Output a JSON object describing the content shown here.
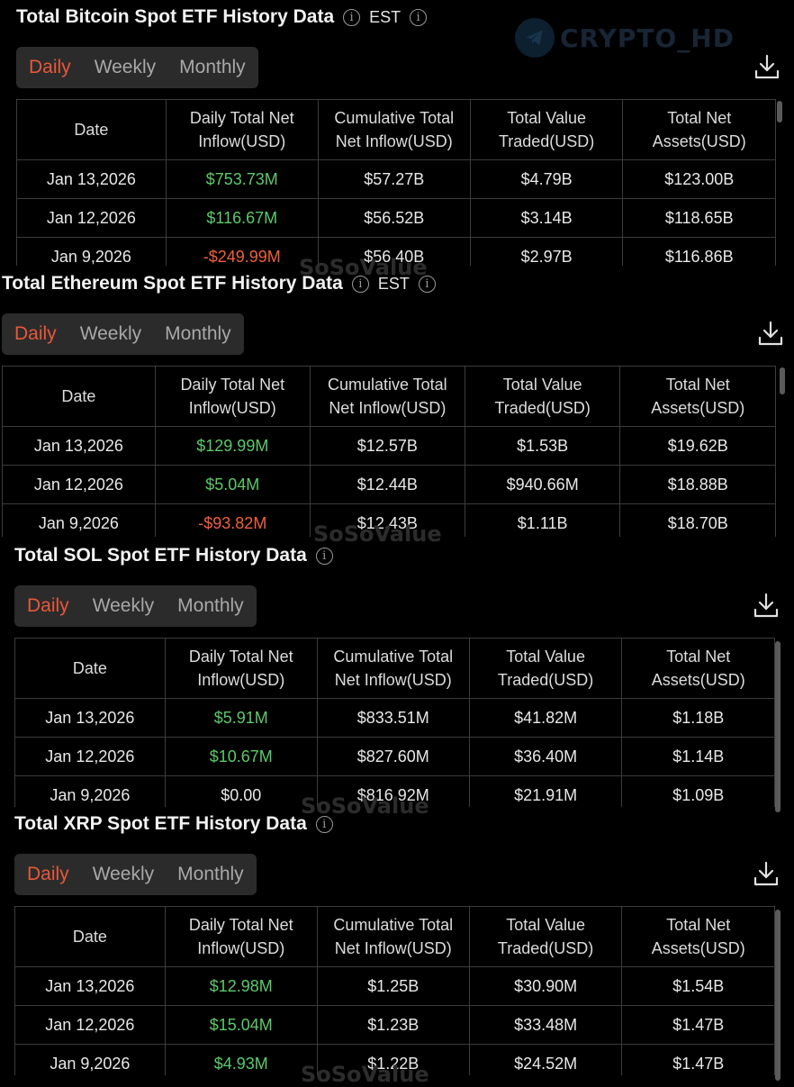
{
  "watermark": "CRYPTO_HD",
  "bg_watermark": "SoSoValue",
  "tabs": [
    "Daily",
    "Weekly",
    "Monthly"
  ],
  "headers": [
    [
      "Date",
      ""
    ],
    [
      "Daily Total Net",
      "Inflow(USD)"
    ],
    [
      "Cumulative Total",
      "Net Inflow(USD)"
    ],
    [
      "Total Value",
      "Traded(USD)"
    ],
    [
      "Total Net",
      "Assets(USD)"
    ]
  ],
  "sections": [
    {
      "title": "Total Bitcoin Spot ETF History Data",
      "tz": "EST",
      "rows": [
        {
          "date": "Jan 13,2026",
          "inflow": "$753.73M",
          "dir": "pos",
          "cumulative": "$57.27B",
          "traded": "$4.79B",
          "assets": "$123.00B"
        },
        {
          "date": "Jan 12,2026",
          "inflow": "$116.67M",
          "dir": "pos",
          "cumulative": "$56.52B",
          "traded": "$3.14B",
          "assets": "$118.65B"
        },
        {
          "date": "Jan 9,2026",
          "inflow": "-$249.99M",
          "dir": "neg",
          "cumulative": "$56.40B",
          "traded": "$2.97B",
          "assets": "$116.86B"
        }
      ]
    },
    {
      "title": "Total Ethereum Spot ETF History Data",
      "tz": "EST",
      "rows": [
        {
          "date": "Jan 13,2026",
          "inflow": "$129.99M",
          "dir": "pos",
          "cumulative": "$12.57B",
          "traded": "$1.53B",
          "assets": "$19.62B"
        },
        {
          "date": "Jan 12,2026",
          "inflow": "$5.04M",
          "dir": "pos",
          "cumulative": "$12.44B",
          "traded": "$940.66M",
          "assets": "$18.88B"
        },
        {
          "date": "Jan 9,2026",
          "inflow": "-$93.82M",
          "dir": "neg",
          "cumulative": "$12.43B",
          "traded": "$1.11B",
          "assets": "$18.70B"
        }
      ]
    },
    {
      "title": "Total SOL Spot ETF History Data",
      "tz": "",
      "rows": [
        {
          "date": "Jan 13,2026",
          "inflow": "$5.91M",
          "dir": "pos",
          "cumulative": "$833.51M",
          "traded": "$41.82M",
          "assets": "$1.18B"
        },
        {
          "date": "Jan 12,2026",
          "inflow": "$10.67M",
          "dir": "pos",
          "cumulative": "$827.60M",
          "traded": "$36.40M",
          "assets": "$1.14B"
        },
        {
          "date": "Jan 9,2026",
          "inflow": "$0.00",
          "dir": "neu",
          "cumulative": "$816.92M",
          "traded": "$21.91M",
          "assets": "$1.09B"
        }
      ]
    },
    {
      "title": "Total XRP Spot ETF History Data",
      "tz": "",
      "rows": [
        {
          "date": "Jan 13,2026",
          "inflow": "$12.98M",
          "dir": "pos",
          "cumulative": "$1.25B",
          "traded": "$30.90M",
          "assets": "$1.54B"
        },
        {
          "date": "Jan 12,2026",
          "inflow": "$15.04M",
          "dir": "pos",
          "cumulative": "$1.23B",
          "traded": "$33.48M",
          "assets": "$1.47B"
        },
        {
          "date": "Jan 9,2026",
          "inflow": "$4.93M",
          "dir": "pos",
          "cumulative": "$1.22B",
          "traded": "$24.52M",
          "assets": "$1.47B"
        }
      ]
    }
  ]
}
